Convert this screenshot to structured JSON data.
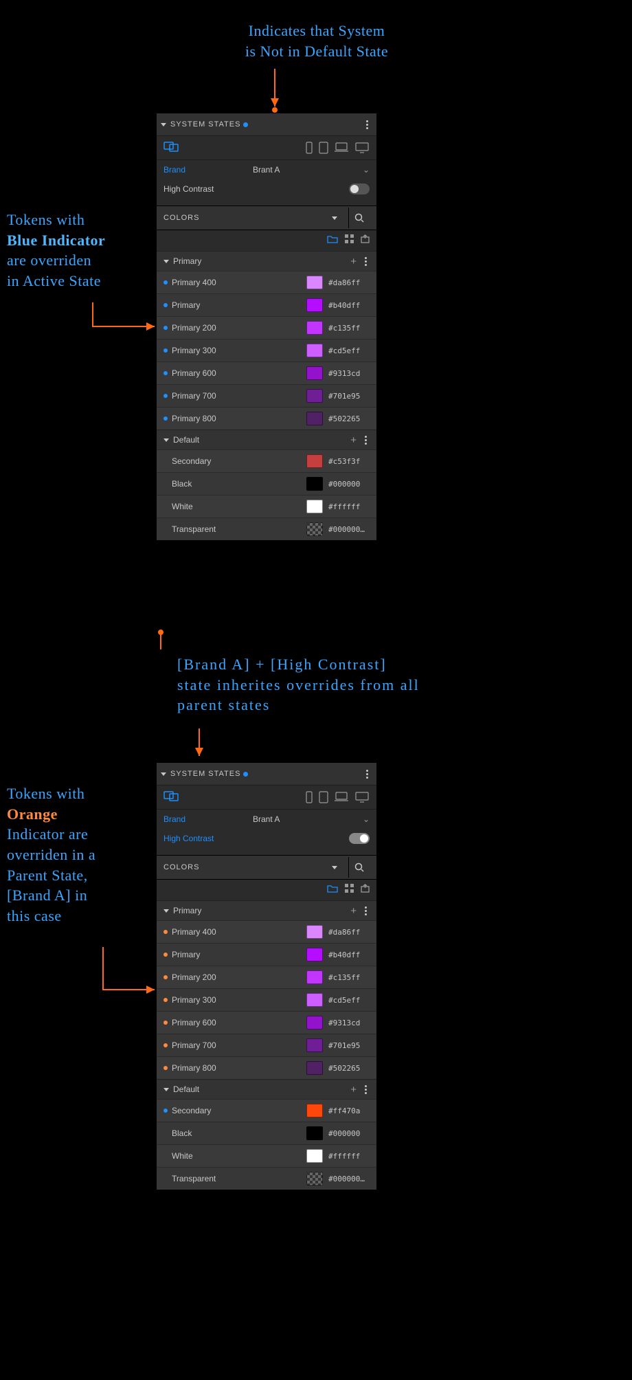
{
  "annotations": {
    "top": "Indicates that System\nis Not in Default State",
    "left1_l1": "Tokens with",
    "left1_l2": "Blue Indicator",
    "left1_l3": "are overriden",
    "left1_l4": "in Active State",
    "middle_l1": "[Brand A] + [High Contrast]",
    "middle_l2": "state inherites overrides from all",
    "middle_l3": "parent states",
    "left2_l1": "Tokens with",
    "left2_l2": "Orange",
    "left2_l3": "Indicator are",
    "left2_l4": "overriden in a",
    "left2_l5": "Parent State,",
    "left2_l6": "[Brand A] in",
    "left2_l7": "this case"
  },
  "styling": {
    "annotation_color": "#3aa6ff",
    "arrow_color": "#ff6a13",
    "indicator_blue": "#1e90ff",
    "indicator_orange": "#ff8a3d",
    "panel_bg": "#2b2b2b"
  },
  "panel_a": {
    "title": "SYSTEM STATES",
    "indicator_color": "#1e90ff",
    "brand_label": "Brand",
    "brand_value": "Brant A",
    "hc_label": "High Contrast",
    "hc_on": false,
    "colors_label": "COLORS",
    "group_primary": "Primary",
    "group_default": "Default",
    "primary_tokens": [
      {
        "dot": "#1e90ff",
        "name": "Primary 400",
        "swatch": "#da86ff",
        "hex": "#da86ff"
      },
      {
        "dot": "#1e90ff",
        "name": "Primary",
        "swatch": "#b40dff",
        "hex": "#b40dff"
      },
      {
        "dot": "#1e90ff",
        "name": "Primary 200",
        "swatch": "#c135ff",
        "hex": "#c135ff"
      },
      {
        "dot": "#1e90ff",
        "name": "Primary 300",
        "swatch": "#cd5eff",
        "hex": "#cd5eff"
      },
      {
        "dot": "#1e90ff",
        "name": "Primary 600",
        "swatch": "#9313cd",
        "hex": "#9313cd"
      },
      {
        "dot": "#1e90ff",
        "name": "Primary 700",
        "swatch": "#701e95",
        "hex": "#701e95"
      },
      {
        "dot": "#1e90ff",
        "name": "Primary 800",
        "swatch": "#502265",
        "hex": "#502265"
      }
    ],
    "default_tokens": [
      {
        "dot": "",
        "name": "Secondary",
        "swatch": "#c53f3f",
        "hex": "#c53f3f"
      },
      {
        "dot": "",
        "name": "Black",
        "swatch": "#000000",
        "hex": "#000000"
      },
      {
        "dot": "",
        "name": "White",
        "swatch": "#ffffff",
        "hex": "#ffffff"
      },
      {
        "dot": "",
        "name": "Transparent",
        "swatch": "checker",
        "hex": "#000000…"
      }
    ]
  },
  "panel_b": {
    "title": "SYSTEM STATES",
    "indicator_color": "#1e90ff",
    "brand_label": "Brand",
    "brand_value": "Brant A",
    "hc_label": "High Contrast",
    "hc_on": true,
    "colors_label": "COLORS",
    "group_primary": "Primary",
    "group_default": "Default",
    "primary_tokens": [
      {
        "dot": "#ff8a3d",
        "name": "Primary 400",
        "swatch": "#da86ff",
        "hex": "#da86ff"
      },
      {
        "dot": "#ff8a3d",
        "name": "Primary",
        "swatch": "#b40dff",
        "hex": "#b40dff"
      },
      {
        "dot": "#ff8a3d",
        "name": "Primary 200",
        "swatch": "#c135ff",
        "hex": "#c135ff"
      },
      {
        "dot": "#ff8a3d",
        "name": "Primary 300",
        "swatch": "#cd5eff",
        "hex": "#cd5eff"
      },
      {
        "dot": "#ff8a3d",
        "name": "Primary 600",
        "swatch": "#9313cd",
        "hex": "#9313cd"
      },
      {
        "dot": "#ff8a3d",
        "name": "Primary 700",
        "swatch": "#701e95",
        "hex": "#701e95"
      },
      {
        "dot": "#ff8a3d",
        "name": "Primary 800",
        "swatch": "#502265",
        "hex": "#502265"
      }
    ],
    "default_tokens": [
      {
        "dot": "#1e90ff",
        "name": "Secondary",
        "swatch": "#ff470a",
        "hex": "#ff470a"
      },
      {
        "dot": "",
        "name": "Black",
        "swatch": "#000000",
        "hex": "#000000"
      },
      {
        "dot": "",
        "name": "White",
        "swatch": "#ffffff",
        "hex": "#ffffff"
      },
      {
        "dot": "",
        "name": "Transparent",
        "swatch": "checker",
        "hex": "#000000…"
      }
    ]
  }
}
